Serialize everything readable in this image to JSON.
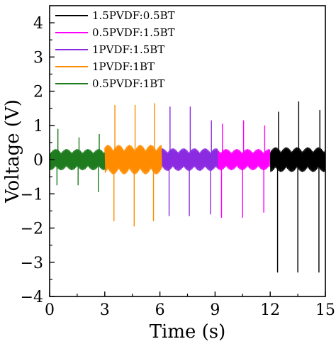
{
  "chart_data": {
    "type": "line",
    "xlabel": "Time (s)",
    "ylabel": "Voltage (V)",
    "xlim": [
      0,
      15
    ],
    "ylim": [
      -4,
      4.5
    ],
    "x_ticks": [
      "0",
      "3",
      "6",
      "9",
      "12",
      "15"
    ],
    "y_ticks": [
      "4",
      "3",
      "2",
      "1",
      "0",
      "−1",
      "−2",
      "−3",
      "−4"
    ],
    "legend_position": "top-right",
    "series": [
      {
        "name": "1.5PVDF:0.5BT",
        "color": "#000000",
        "x_range": [
          12.0,
          15.0
        ],
        "noise_amplitude": 0.35,
        "spikes": [
          {
            "x": 12.4,
            "y": -3.3
          },
          {
            "x": 12.45,
            "y": 1.4
          },
          {
            "x": 13.5,
            "y": -3.3
          },
          {
            "x": 13.55,
            "y": 1.7
          },
          {
            "x": 14.65,
            "y": -3.3
          },
          {
            "x": 14.7,
            "y": 1.45
          }
        ]
      },
      {
        "name": "0.5PVDF:1.5BT",
        "color": "#ff00ff",
        "x_range": [
          9.15,
          12.0
        ],
        "noise_amplitude": 0.3,
        "spikes": [
          {
            "x": 9.35,
            "y": -1.7
          },
          {
            "x": 9.4,
            "y": 1.05
          },
          {
            "x": 10.5,
            "y": -1.7
          },
          {
            "x": 10.55,
            "y": 1.15
          },
          {
            "x": 11.65,
            "y": -1.55
          },
          {
            "x": 11.7,
            "y": 1.0
          }
        ]
      },
      {
        "name": "1PVDF:1.5BT",
        "color": "#8a2be2",
        "x_range": [
          6.1,
          9.15
        ],
        "noise_amplitude": 0.32,
        "spikes": [
          {
            "x": 6.5,
            "y": -1.65
          },
          {
            "x": 6.55,
            "y": 1.55
          },
          {
            "x": 7.6,
            "y": -1.65
          },
          {
            "x": 7.65,
            "y": 1.55
          },
          {
            "x": 8.75,
            "y": -1.6
          },
          {
            "x": 8.8,
            "y": 1.15
          }
        ]
      },
      {
        "name": "1PVDF:1BT",
        "color": "#ff8c00",
        "x_range": [
          3.0,
          6.1
        ],
        "noise_amplitude": 0.42,
        "spikes": [
          {
            "x": 3.5,
            "y": -1.8
          },
          {
            "x": 3.55,
            "y": 1.6
          },
          {
            "x": 4.6,
            "y": -1.95
          },
          {
            "x": 4.65,
            "y": 1.6
          },
          {
            "x": 5.65,
            "y": -1.8
          },
          {
            "x": 5.7,
            "y": 1.65
          }
        ]
      },
      {
        "name": "0.5PVDF:1BT",
        "color": "#1e7b1e",
        "x_range": [
          0.0,
          3.0
        ],
        "noise_amplitude": 0.3,
        "spikes": [
          {
            "x": 0.4,
            "y": -0.75
          },
          {
            "x": 0.45,
            "y": 0.9
          },
          {
            "x": 1.55,
            "y": -0.75
          },
          {
            "x": 1.6,
            "y": 0.65
          },
          {
            "x": 2.65,
            "y": -0.95
          },
          {
            "x": 2.7,
            "y": 0.75
          }
        ]
      }
    ]
  }
}
